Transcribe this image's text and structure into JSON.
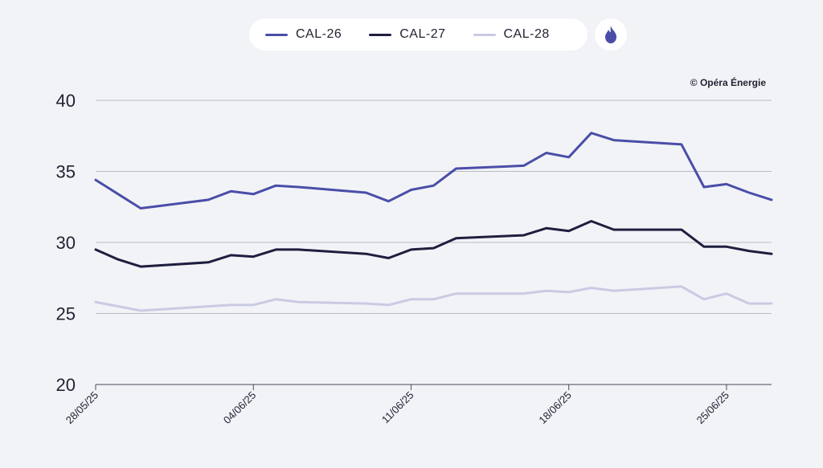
{
  "legend": {
    "items": [
      {
        "label": "CAL-26",
        "color": "#4a4ea8"
      },
      {
        "label": "CAL-27",
        "color": "#1e1f3e"
      },
      {
        "label": "CAL-28",
        "color": "#c9cae3"
      }
    ],
    "gas_icon": "flame-icon"
  },
  "credit": "© Opéra Énergie",
  "chart_data": {
    "type": "line",
    "x": [
      "28/05/25",
      "29/05/25",
      "30/05/25",
      "02/06/25",
      "03/06/25",
      "04/06/25",
      "05/06/25",
      "06/06/25",
      "09/06/25",
      "10/06/25",
      "11/06/25",
      "12/06/25",
      "13/06/25",
      "16/06/25",
      "17/06/25",
      "18/06/25",
      "19/06/25",
      "20/06/25",
      "23/06/25",
      "24/06/25",
      "25/06/25",
      "26/06/25",
      "27/06/25"
    ],
    "xticks": [
      "28/05/25",
      "04/06/25",
      "11/06/25",
      "18/06/25",
      "25/06/25"
    ],
    "series": [
      {
        "name": "CAL-26",
        "color": "#4a4ea8",
        "values": [
          34.4,
          33.4,
          32.4,
          33.0,
          33.6,
          33.4,
          34.0,
          33.9,
          33.5,
          32.9,
          33.7,
          34.0,
          35.2,
          35.4,
          36.3,
          36.0,
          37.7,
          37.2,
          36.9,
          33.9,
          34.1,
          33.5,
          33.0
        ]
      },
      {
        "name": "CAL-27",
        "color": "#1e1f3e",
        "values": [
          29.5,
          28.8,
          28.3,
          28.6,
          29.1,
          29.0,
          29.5,
          29.5,
          29.2,
          28.9,
          29.5,
          29.6,
          30.3,
          30.5,
          31.0,
          30.8,
          31.5,
          30.9,
          30.9,
          29.7,
          29.7,
          29.4,
          29.2
        ]
      },
      {
        "name": "CAL-28",
        "color": "#c9cae3",
        "values": [
          25.8,
          25.5,
          25.2,
          25.5,
          25.6,
          25.6,
          26.0,
          25.8,
          25.7,
          25.6,
          26.0,
          26.0,
          26.4,
          26.4,
          26.6,
          26.5,
          26.8,
          26.6,
          26.9,
          26.0,
          26.4,
          25.7,
          25.7
        ]
      }
    ],
    "ylim": [
      20,
      40
    ],
    "yticks": [
      20,
      25,
      30,
      35,
      40
    ],
    "grid": true,
    "legend_position": "top-center"
  }
}
